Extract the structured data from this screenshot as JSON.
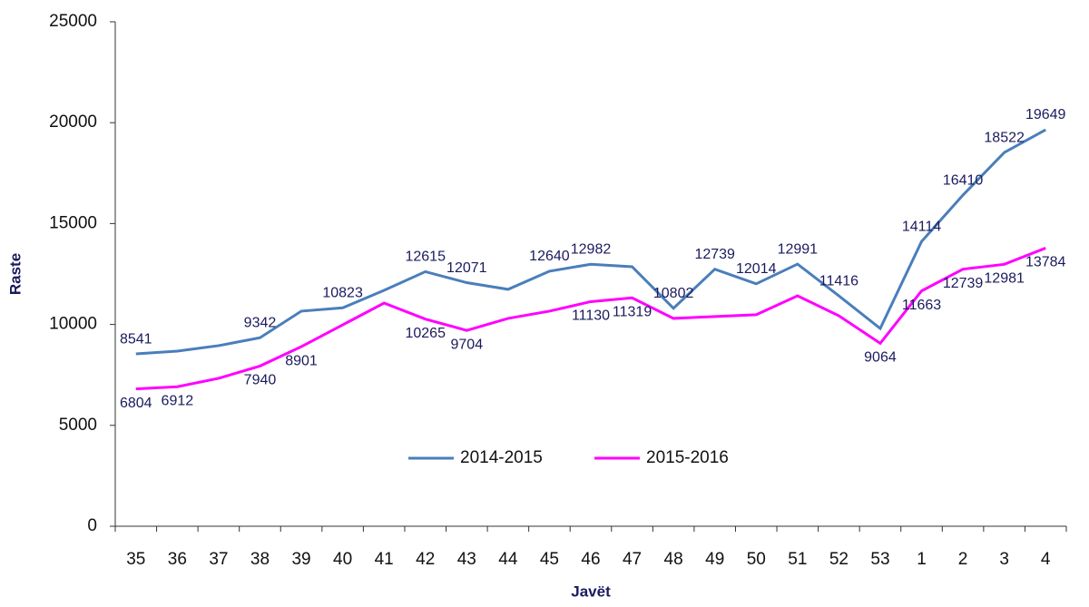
{
  "chart_data": {
    "type": "line",
    "x_label": "Javët",
    "y_label": "Raste",
    "categories": [
      "35",
      "36",
      "37",
      "38",
      "39",
      "40",
      "41",
      "42",
      "43",
      "44",
      "45",
      "46",
      "47",
      "48",
      "49",
      "50",
      "51",
      "52",
      "53",
      "1",
      "2",
      "3",
      "4"
    ],
    "series": [
      {
        "name": "2014-2015",
        "color": "#4a7ebb",
        "values": [
          8541,
          8680,
          8950,
          9342,
          10660,
          10823,
          11690,
          12615,
          12071,
          11740,
          12640,
          12982,
          12860,
          10802,
          12739,
          12014,
          12991,
          11416,
          9800,
          14114,
          16410,
          18522,
          19649
        ],
        "value_labels": [
          "8541",
          null,
          null,
          "9342",
          null,
          "10823",
          null,
          "12615",
          "12071",
          null,
          "12640",
          "12982",
          null,
          "10802",
          "12739",
          "12014",
          "12991",
          "11416",
          null,
          "14114",
          "16410",
          "18522",
          "19649"
        ]
      },
      {
        "name": "2015-2016",
        "color": "#ff00ff",
        "values": [
          6804,
          6912,
          7330,
          7940,
          8901,
          9980,
          11060,
          10265,
          9704,
          10300,
          10660,
          11130,
          11319,
          10300,
          10390,
          10480,
          11420,
          10430,
          9064,
          11663,
          12739,
          12981,
          13784
        ],
        "value_labels": [
          "6804",
          "6912",
          null,
          "7940",
          "8901",
          null,
          null,
          "10265",
          "9704",
          null,
          null,
          "11130",
          "11319",
          null,
          null,
          null,
          null,
          null,
          "9064",
          "11663",
          "12739",
          "12981",
          "13784"
        ]
      }
    ],
    "ylim": [
      0,
      25000
    ],
    "yticks": [
      0,
      5000,
      10000,
      15000,
      20000,
      25000
    ],
    "grid": false,
    "legend": "center"
  }
}
